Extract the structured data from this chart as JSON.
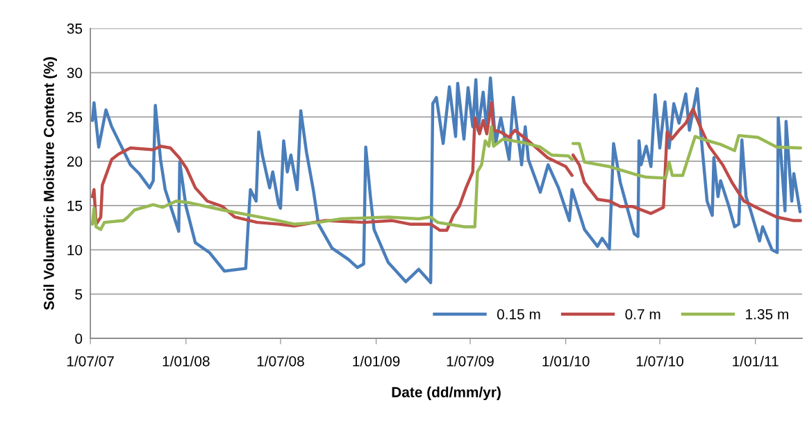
{
  "chart_data": {
    "type": "line",
    "xlabel": "Date (dd/mm/yr)",
    "ylabel": "Soil Volumetric Moisture Content (%)",
    "xlim": [
      "2007-07-01",
      "2011-04-01"
    ],
    "xticks": [
      {
        "value": "2007-07-01",
        "label": "1/07/07"
      },
      {
        "value": "2008-01-01",
        "label": "1/01/08"
      },
      {
        "value": "2008-07-01",
        "label": "1/07/08"
      },
      {
        "value": "2009-01-01",
        "label": "1/01/09"
      },
      {
        "value": "2009-07-01",
        "label": "1/07/09"
      },
      {
        "value": "2010-01-01",
        "label": "1/01/10"
      },
      {
        "value": "2010-07-01",
        "label": "1/07/10"
      },
      {
        "value": "2011-01-01",
        "label": "1/01/11"
      }
    ],
    "ylim": [
      0,
      35
    ],
    "yticks": [
      0,
      5,
      10,
      15,
      20,
      25,
      30,
      35
    ],
    "grid": "y",
    "legend": "bottom right",
    "marker": "none",
    "line_style": "solid",
    "series": [
      {
        "name": "0.15 m",
        "color": "#4a7ebb",
        "x": [
          "2007-07-05",
          "2007-07-08",
          "2007-07-17",
          "2007-07-31",
          "2007-08-11",
          "2007-09-16",
          "2007-10-03",
          "2007-10-23",
          "2007-10-30",
          "2007-11-03",
          "2007-11-13",
          "2007-11-22",
          "2007-12-18",
          "2007-12-20",
          "2008-01-01",
          "2008-01-19",
          "2008-02-15",
          "2008-03-15",
          "2008-04-25",
          "2008-04-30",
          "2008-05-04",
          "2008-05-15",
          "2008-05-20",
          "2008-05-27",
          "2008-06-10",
          "2008-06-16",
          "2008-06-27",
          "2008-07-01",
          "2008-07-07",
          "2008-07-14",
          "2008-07-21",
          "2008-08-02",
          "2008-08-09",
          "2008-08-20",
          "2008-09-02",
          "2008-09-12",
          "2008-10-08",
          "2008-11-09",
          "2008-11-26",
          "2008-12-08",
          "2008-12-12",
          "2008-12-21",
          "2008-12-28",
          "2009-01-24",
          "2009-02-27",
          "2009-03-24",
          "2009-04-16",
          "2009-04-20",
          "2009-04-27",
          "2009-05-10",
          "2009-05-22",
          "2009-06-03",
          "2009-06-07",
          "2009-06-19",
          "2009-06-27",
          "2009-07-06",
          "2009-07-12",
          "2009-07-16",
          "2009-07-26",
          "2009-08-02",
          "2009-08-09",
          "2009-08-19",
          "2009-08-29",
          "2009-09-14",
          "2009-09-22",
          "2009-10-08",
          "2009-10-15",
          "2009-10-21",
          "2009-11-13",
          "2009-11-28",
          "2009-12-18",
          "2010-01-08",
          "2010-01-13",
          "2010-02-06",
          "2010-03-03",
          "2010-03-12",
          "2010-03-26",
          "2010-04-03",
          "2010-04-16",
          "2010-05-13",
          "2010-05-20",
          "2010-05-22",
          "2010-05-26",
          "2010-06-05",
          "2010-06-14",
          "2010-06-22",
          "2010-07-01",
          "2010-07-11",
          "2010-07-19",
          "2010-07-28",
          "2010-08-07",
          "2010-08-20",
          "2010-08-27",
          "2010-09-11",
          "2010-09-21",
          "2010-09-30",
          "2010-10-10",
          "2010-10-13",
          "2010-10-21",
          "2010-10-26",
          "2010-11-11",
          "2010-11-22",
          "2010-11-30",
          "2010-12-06",
          "2010-12-14",
          "2010-12-23",
          "2011-01-09",
          "2011-01-15",
          "2011-02-02",
          "2011-02-12",
          "2011-02-14",
          "2011-02-27",
          "2011-03-01",
          "2011-03-12",
          "2011-03-16",
          "2011-03-28"
        ],
        "values": [
          24.6,
          26.6,
          21.6,
          25.8,
          23.9,
          19.6,
          18.6,
          17.0,
          17.8,
          26.3,
          20.2,
          16.8,
          12.1,
          19.9,
          14.9,
          10.8,
          9.7,
          7.6,
          7.9,
          13.1,
          16.8,
          15.5,
          23.3,
          20.7,
          17.0,
          18.8,
          15.2,
          14.7,
          22.3,
          18.8,
          20.7,
          16.8,
          25.7,
          21.0,
          16.8,
          12.9,
          10.2,
          8.9,
          8.0,
          8.4,
          21.6,
          16.0,
          12.3,
          8.6,
          6.4,
          7.8,
          6.3,
          26.5,
          27.2,
          22.0,
          28.4,
          22.8,
          28.8,
          22.5,
          28.3,
          23.9,
          29.2,
          23.5,
          27.8,
          23.5,
          29.4,
          22.0,
          24.9,
          20.2,
          27.2,
          19.6,
          23.9,
          20.2,
          16.5,
          19.6,
          17.0,
          13.3,
          16.8,
          12.3,
          10.4,
          11.3,
          10.1,
          22.0,
          17.6,
          11.8,
          11.5,
          22.3,
          19.6,
          21.7,
          19.4,
          27.5,
          21.5,
          26.7,
          21.5,
          26.5,
          24.3,
          27.6,
          23.5,
          28.2,
          21.2,
          15.5,
          13.9,
          20.4,
          16.0,
          17.8,
          14.9,
          12.6,
          12.9,
          22.4,
          16.0,
          14.4,
          11.0,
          12.6,
          10.0,
          9.7,
          24.9,
          14.4,
          24.5,
          15.5,
          18.6,
          14.3
        ]
      },
      {
        "name": "0.7 m",
        "color": "#be4b48",
        "x": [
          "2007-07-05",
          "2007-07-08",
          "2007-07-12",
          "2007-07-21",
          "2007-07-24",
          "2007-08-11",
          "2007-08-24",
          "2007-09-16",
          "2007-10-30",
          "2007-11-13",
          "2007-12-02",
          "2007-12-19",
          "2008-01-02",
          "2008-01-19",
          "2008-02-11",
          "2008-03-11",
          "2008-04-04",
          "2008-05-17",
          "2008-06-27",
          "2008-07-27",
          "2008-09-25",
          "2008-12-09",
          "2009-02-01",
          "2009-03-07",
          "2009-04-16",
          "2009-05-04",
          "2009-05-17",
          "2009-05-30",
          "2009-06-10",
          "2009-06-23",
          "2009-07-06",
          "2009-07-10",
          "2009-07-19",
          "2009-07-26",
          "2009-08-02",
          "2009-08-11",
          "2009-08-15",
          "2009-08-29",
          "2009-09-14",
          "2009-09-25",
          "2009-10-17",
          "2009-11-27",
          "2010-01-01",
          "2010-01-13",
          "2010-01-14",
          "2010-01-15",
          "2010-01-27",
          "2010-02-06",
          "2010-03-03",
          "2010-03-26",
          "2010-04-16",
          "2010-05-09",
          "2010-06-14",
          "2010-07-08",
          "2010-07-15",
          "2010-07-24",
          "2010-08-07",
          "2010-08-20",
          "2010-09-03",
          "2010-09-17",
          "2010-10-04",
          "2010-10-30",
          "2010-11-17",
          "2010-12-10",
          "2011-01-06",
          "2011-02-11",
          "2011-03-16",
          "2011-03-29"
        ],
        "values": [
          16.0,
          16.8,
          12.9,
          13.7,
          17.3,
          20.2,
          20.8,
          21.5,
          21.3,
          21.7,
          21.5,
          20.4,
          19.2,
          17.0,
          15.5,
          14.9,
          13.7,
          13.1,
          12.9,
          12.7,
          13.3,
          13.1,
          13.3,
          12.9,
          12.9,
          12.2,
          12.2,
          13.9,
          14.9,
          17.0,
          18.8,
          24.9,
          23.1,
          24.6,
          23.1,
          26.6,
          23.5,
          23.3,
          22.7,
          23.5,
          22.5,
          20.4,
          19.4,
          18.4,
          null,
          20.7,
          19.6,
          17.6,
          15.7,
          15.5,
          14.9,
          14.9,
          14.1,
          14.8,
          23.3,
          22.5,
          23.5,
          24.3,
          25.9,
          23.9,
          21.7,
          19.6,
          17.6,
          15.5,
          14.7,
          13.7,
          13.3,
          13.3
        ]
      },
      {
        "name": "1.35 m",
        "color": "#98b954",
        "x": [
          "2007-07-05",
          "2007-07-08",
          "2007-07-12",
          "2007-07-21",
          "2007-07-28",
          "2007-09-03",
          "2007-09-11",
          "2007-09-24",
          "2007-10-30",
          "2007-11-17",
          "2007-12-13",
          "2008-01-09",
          "2008-03-11",
          "2008-04-25",
          "2008-06-27",
          "2008-07-27",
          "2008-09-12",
          "2008-10-26",
          "2009-01-24",
          "2009-03-24",
          "2009-04-16",
          "2009-04-29",
          "2009-06-20",
          "2009-07-10",
          "2009-07-15",
          "2009-07-23",
          "2009-07-30",
          "2009-08-06",
          "2009-08-11",
          "2009-08-15",
          "2009-09-02",
          "2009-10-12",
          "2009-11-13",
          "2009-12-05",
          "2010-01-06",
          "2010-01-13",
          "2010-01-14",
          "2010-01-15",
          "2010-01-27",
          "2010-02-06",
          "2010-03-26",
          "2010-05-22",
          "2010-06-05",
          "2010-07-12",
          "2010-07-19",
          "2010-07-25",
          "2010-08-14",
          "2010-09-07",
          "2010-09-21",
          "2010-10-26",
          "2010-11-22",
          "2010-11-30",
          "2011-01-06",
          "2011-02-11",
          "2011-03-29"
        ],
        "values": [
          12.9,
          14.7,
          12.6,
          12.3,
          13.1,
          13.3,
          13.7,
          14.5,
          15.1,
          14.8,
          15.5,
          15.3,
          14.5,
          14.0,
          13.3,
          12.9,
          13.1,
          13.5,
          13.7,
          13.5,
          13.7,
          13.1,
          12.6,
          12.6,
          18.8,
          19.6,
          22.3,
          21.7,
          23.9,
          21.7,
          22.5,
          22.1,
          21.6,
          20.7,
          20.6,
          20.2,
          null,
          22.0,
          22.0,
          19.9,
          19.4,
          18.4,
          18.2,
          18.1,
          19.9,
          18.4,
          18.4,
          22.8,
          22.5,
          21.9,
          21.2,
          22.9,
          22.7,
          21.6,
          21.5
        ]
      }
    ]
  }
}
